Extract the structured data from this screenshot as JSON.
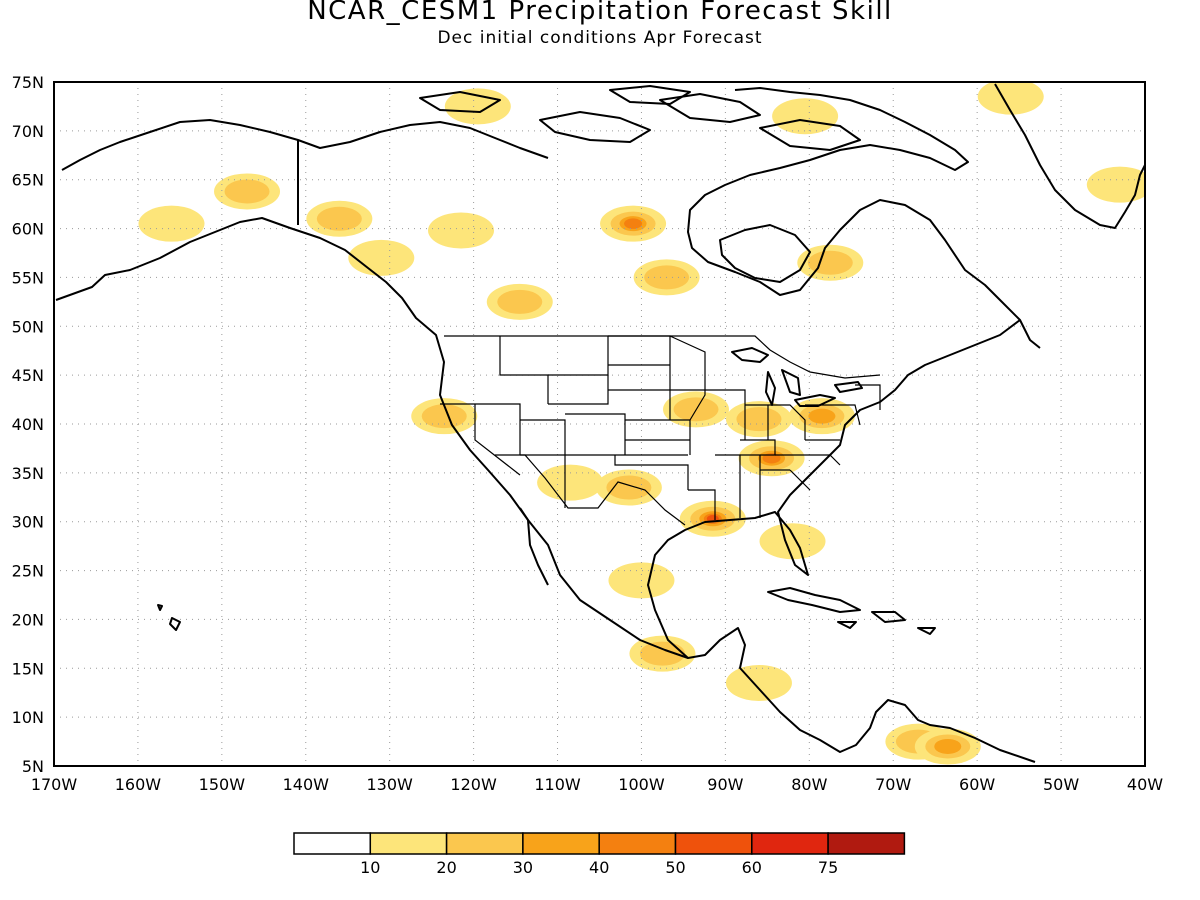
{
  "title": "NCAR_CESM1 Precipitation Forecast Skill",
  "subtitle": "Dec initial conditions  Apr Forecast",
  "axes": {
    "lon_min": -170,
    "lon_max": -40,
    "lat_min": 5,
    "lat_max": 75,
    "lat_labels": [
      "75N",
      "70N",
      "65N",
      "60N",
      "55N",
      "50N",
      "45N",
      "40N",
      "35N",
      "30N",
      "25N",
      "20N",
      "15N",
      "10N",
      "5N"
    ],
    "lon_labels": [
      "170W",
      "160W",
      "150W",
      "140W",
      "130W",
      "120W",
      "110W",
      "100W",
      "90W",
      "80W",
      "70W",
      "60W",
      "50W",
      "40W"
    ],
    "grid": "dotted"
  },
  "colorbar": {
    "labels": [
      "10",
      "20",
      "30",
      "40",
      "50",
      "60",
      "75"
    ],
    "colors": [
      "#ffffff",
      "#fde57a",
      "#fbc74e",
      "#f8a31a",
      "#f48010",
      "#ef520c",
      "#e0260f",
      "#b01a10"
    ]
  },
  "skill_regions": [
    {
      "lon": -119.5,
      "lat": 72.5,
      "level": 1
    },
    {
      "lon": -147.0,
      "lat": 63.8,
      "level": 2
    },
    {
      "lon": -156.0,
      "lat": 60.5,
      "level": 1
    },
    {
      "lon": -136.0,
      "lat": 61.0,
      "level": 2
    },
    {
      "lon": -131.0,
      "lat": 57.0,
      "level": 1
    },
    {
      "lon": -121.5,
      "lat": 59.8,
      "level": 1
    },
    {
      "lon": -114.5,
      "lat": 52.5,
      "level": 2
    },
    {
      "lon": -101.0,
      "lat": 60.5,
      "level": 4
    },
    {
      "lon": -97.0,
      "lat": 55.0,
      "level": 2
    },
    {
      "lon": -77.5,
      "lat": 56.5,
      "level": 2
    },
    {
      "lon": -80.5,
      "lat": 71.5,
      "level": 1
    },
    {
      "lon": -56.0,
      "lat": 73.5,
      "level": 1
    },
    {
      "lon": -43.0,
      "lat": 64.5,
      "level": 1
    },
    {
      "lon": -123.5,
      "lat": 40.8,
      "level": 2
    },
    {
      "lon": -108.5,
      "lat": 34.0,
      "level": 1
    },
    {
      "lon": -101.5,
      "lat": 33.5,
      "level": 2
    },
    {
      "lon": -93.5,
      "lat": 41.5,
      "level": 2
    },
    {
      "lon": -86.0,
      "lat": 40.5,
      "level": 2
    },
    {
      "lon": -78.5,
      "lat": 40.8,
      "level": 3
    },
    {
      "lon": -84.5,
      "lat": 36.5,
      "level": 4
    },
    {
      "lon": -91.5,
      "lat": 30.3,
      "level": 5
    },
    {
      "lon": -82.0,
      "lat": 28.0,
      "level": 1
    },
    {
      "lon": -100.0,
      "lat": 24.0,
      "level": 1
    },
    {
      "lon": -97.5,
      "lat": 16.5,
      "level": 2
    },
    {
      "lon": -86.0,
      "lat": 13.5,
      "level": 1
    },
    {
      "lon": -67.0,
      "lat": 7.5,
      "level": 2
    },
    {
      "lon": -63.5,
      "lat": 7.0,
      "level": 3
    }
  ]
}
